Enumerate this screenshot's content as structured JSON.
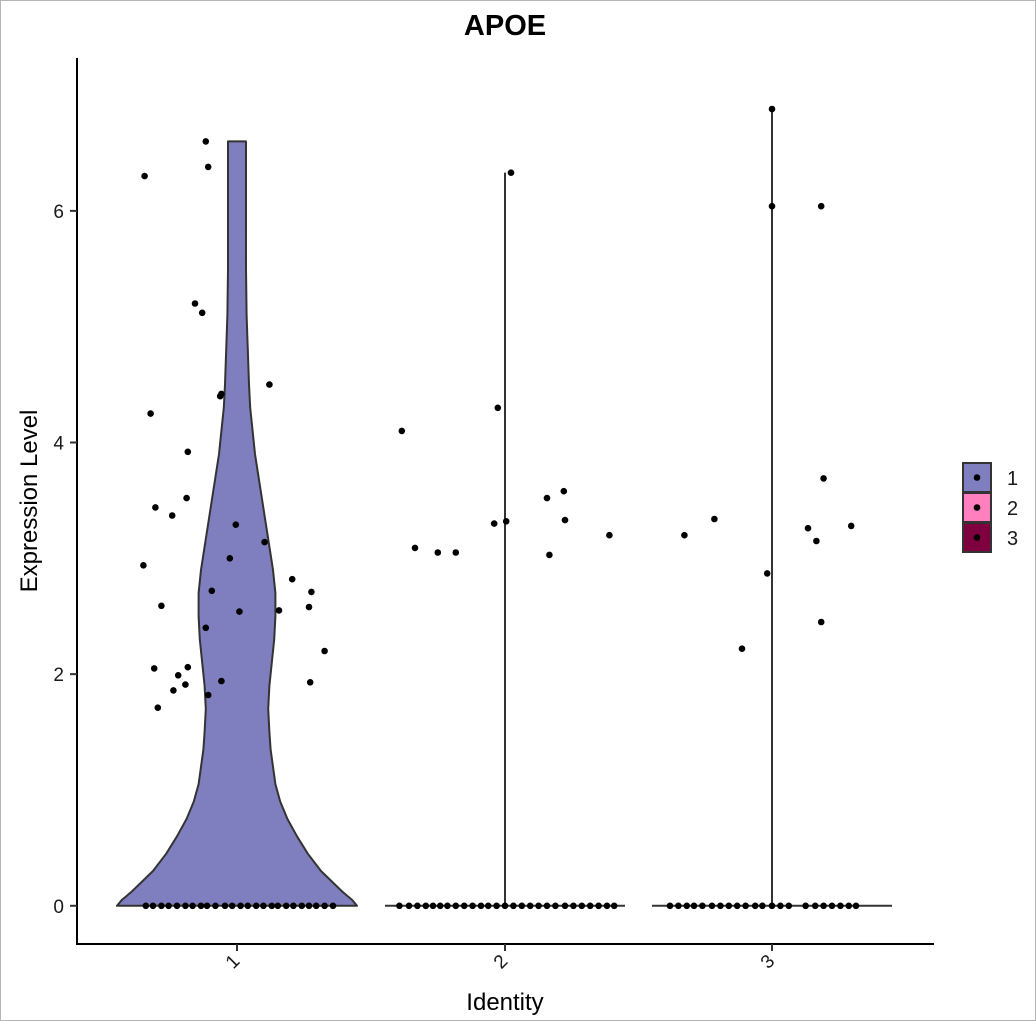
{
  "chart_data": {
    "type": "violin",
    "title": "APOE",
    "xlabel": "Identity",
    "ylabel": "Expression Level",
    "categories": [
      "1",
      "2",
      "3"
    ],
    "ylim": [
      -0.33,
      7.32
    ],
    "yticks": [
      0,
      2,
      4,
      6
    ],
    "ytick_labels": [
      "0",
      "2",
      "4",
      "6"
    ],
    "grid": false,
    "legend": {
      "position": "right",
      "entries": [
        {
          "label": "1",
          "color": "#7F7FBF"
        },
        {
          "label": "2",
          "color": "#FF7FBF"
        },
        {
          "label": "3",
          "color": "#7F003F"
        }
      ]
    },
    "series": [
      {
        "name": "1",
        "color": "#7F7FBF",
        "max": 6.6,
        "violin_profile": [
          [
            0,
            1.0
          ],
          [
            0.05,
            0.96
          ],
          [
            0.12,
            0.88
          ],
          [
            0.2,
            0.8
          ],
          [
            0.3,
            0.7
          ],
          [
            0.45,
            0.59
          ],
          [
            0.6,
            0.5
          ],
          [
            0.75,
            0.42
          ],
          [
            0.9,
            0.36
          ],
          [
            1.05,
            0.32
          ],
          [
            1.2,
            0.3
          ],
          [
            1.35,
            0.28
          ],
          [
            1.5,
            0.27
          ],
          [
            1.7,
            0.26
          ],
          [
            1.9,
            0.27
          ],
          [
            2.1,
            0.29
          ],
          [
            2.3,
            0.31
          ],
          [
            2.5,
            0.32
          ],
          [
            2.7,
            0.32
          ],
          [
            2.9,
            0.3
          ],
          [
            3.1,
            0.27
          ],
          [
            3.3,
            0.24
          ],
          [
            3.5,
            0.21
          ],
          [
            3.7,
            0.18
          ],
          [
            3.9,
            0.15
          ],
          [
            4.1,
            0.13
          ],
          [
            4.3,
            0.11
          ],
          [
            4.5,
            0.1
          ],
          [
            4.8,
            0.09
          ],
          [
            5.1,
            0.08
          ],
          [
            5.5,
            0.075
          ],
          [
            6.0,
            0.075
          ],
          [
            6.6,
            0.075
          ]
        ],
        "points": [
          [
            -0.76,
            0
          ],
          [
            -0.7,
            0
          ],
          [
            -0.63,
            0
          ],
          [
            -0.57,
            0
          ],
          [
            -0.5,
            0
          ],
          [
            -0.43,
            0
          ],
          [
            -0.37,
            0
          ],
          [
            -0.3,
            0
          ],
          [
            -0.25,
            0
          ],
          [
            -0.18,
            0
          ],
          [
            -0.1,
            0
          ],
          [
            -0.04,
            0
          ],
          [
            0.03,
            0
          ],
          [
            0.09,
            0
          ],
          [
            0.16,
            0
          ],
          [
            0.22,
            0
          ],
          [
            0.29,
            0
          ],
          [
            0.34,
            0
          ],
          [
            0.41,
            0
          ],
          [
            0.47,
            0
          ],
          [
            0.54,
            0
          ],
          [
            0.6,
            0
          ],
          [
            0.66,
            0
          ],
          [
            0.73,
            0
          ],
          [
            0.8,
            0
          ],
          [
            -0.77,
            6.3
          ],
          [
            -0.26,
            6.6
          ],
          [
            -0.24,
            6.38
          ],
          [
            -0.35,
            5.2
          ],
          [
            -0.29,
            5.12
          ],
          [
            -0.72,
            4.25
          ],
          [
            -0.13,
            4.42
          ],
          [
            -0.14,
            4.4
          ],
          [
            0.27,
            4.5
          ],
          [
            -0.41,
            3.92
          ],
          [
            -0.42,
            3.52
          ],
          [
            -0.68,
            3.44
          ],
          [
            -0.54,
            3.37
          ],
          [
            -0.01,
            3.29
          ],
          [
            0.23,
            3.14
          ],
          [
            -0.06,
            3.0
          ],
          [
            0.02,
            2.54
          ],
          [
            -0.21,
            2.72
          ],
          [
            -0.63,
            2.59
          ],
          [
            0.35,
            2.55
          ],
          [
            0.46,
            2.82
          ],
          [
            0.62,
            2.71
          ],
          [
            0.6,
            2.58
          ],
          [
            0.73,
            2.2
          ],
          [
            -0.78,
            2.94
          ],
          [
            -0.26,
            2.4
          ],
          [
            -0.13,
            1.94
          ],
          [
            -0.69,
            2.05
          ],
          [
            -0.49,
            1.99
          ],
          [
            -0.41,
            2.06
          ],
          [
            -0.43,
            1.91
          ],
          [
            -0.53,
            1.86
          ],
          [
            -0.24,
            1.82
          ],
          [
            -0.66,
            1.71
          ],
          [
            0.61,
            1.93
          ]
        ]
      },
      {
        "name": "2",
        "color": "#FF7FBF",
        "max": 6.33,
        "points": [
          [
            -0.88,
            0
          ],
          [
            -0.8,
            0
          ],
          [
            -0.73,
            0
          ],
          [
            -0.66,
            0
          ],
          [
            -0.6,
            0
          ],
          [
            -0.54,
            0
          ],
          [
            -0.48,
            0
          ],
          [
            -0.41,
            0
          ],
          [
            -0.34,
            0
          ],
          [
            -0.27,
            0
          ],
          [
            -0.2,
            0
          ],
          [
            -0.14,
            0
          ],
          [
            -0.07,
            0
          ],
          [
            0.0,
            0
          ],
          [
            0.07,
            0
          ],
          [
            0.14,
            0
          ],
          [
            0.21,
            0
          ],
          [
            0.28,
            0
          ],
          [
            0.35,
            0
          ],
          [
            0.42,
            0
          ],
          [
            0.5,
            0
          ],
          [
            0.57,
            0
          ],
          [
            0.64,
            0
          ],
          [
            0.71,
            0
          ],
          [
            0.78,
            0
          ],
          [
            0.85,
            0
          ],
          [
            0.91,
            0
          ],
          [
            0.05,
            6.33
          ],
          [
            -0.06,
            4.3
          ],
          [
            -0.86,
            4.1
          ],
          [
            -0.75,
            3.09
          ],
          [
            -0.56,
            3.05
          ],
          [
            -0.41,
            3.05
          ],
          [
            -0.09,
            3.3
          ],
          [
            0.01,
            3.32
          ],
          [
            0.35,
            3.52
          ],
          [
            0.49,
            3.58
          ],
          [
            0.5,
            3.33
          ],
          [
            0.87,
            3.2
          ],
          [
            0.37,
            3.03
          ]
        ]
      },
      {
        "name": "3",
        "color": "#7F003F",
        "max": 6.88,
        "points": [
          [
            -0.85,
            0
          ],
          [
            -0.78,
            0
          ],
          [
            -0.71,
            0
          ],
          [
            -0.65,
            0
          ],
          [
            -0.58,
            0
          ],
          [
            -0.5,
            0
          ],
          [
            -0.43,
            0
          ],
          [
            -0.36,
            0
          ],
          [
            -0.29,
            0
          ],
          [
            -0.22,
            0
          ],
          [
            -0.14,
            0
          ],
          [
            -0.08,
            0
          ],
          [
            0.0,
            0
          ],
          [
            0.07,
            0
          ],
          [
            0.14,
            0
          ],
          [
            0.28,
            0
          ],
          [
            0.36,
            0
          ],
          [
            0.43,
            0
          ],
          [
            0.5,
            0
          ],
          [
            0.57,
            0
          ],
          [
            0.64,
            0
          ],
          [
            0.7,
            0
          ],
          [
            0.0,
            6.88
          ],
          [
            0.0,
            6.04
          ],
          [
            0.41,
            6.04
          ],
          [
            0.43,
            3.69
          ],
          [
            -0.73,
            3.2
          ],
          [
            -0.48,
            3.34
          ],
          [
            0.3,
            3.26
          ],
          [
            0.37,
            3.15
          ],
          [
            0.66,
            3.28
          ],
          [
            -0.04,
            2.87
          ],
          [
            -0.25,
            2.22
          ],
          [
            0.41,
            2.45
          ]
        ]
      }
    ]
  }
}
